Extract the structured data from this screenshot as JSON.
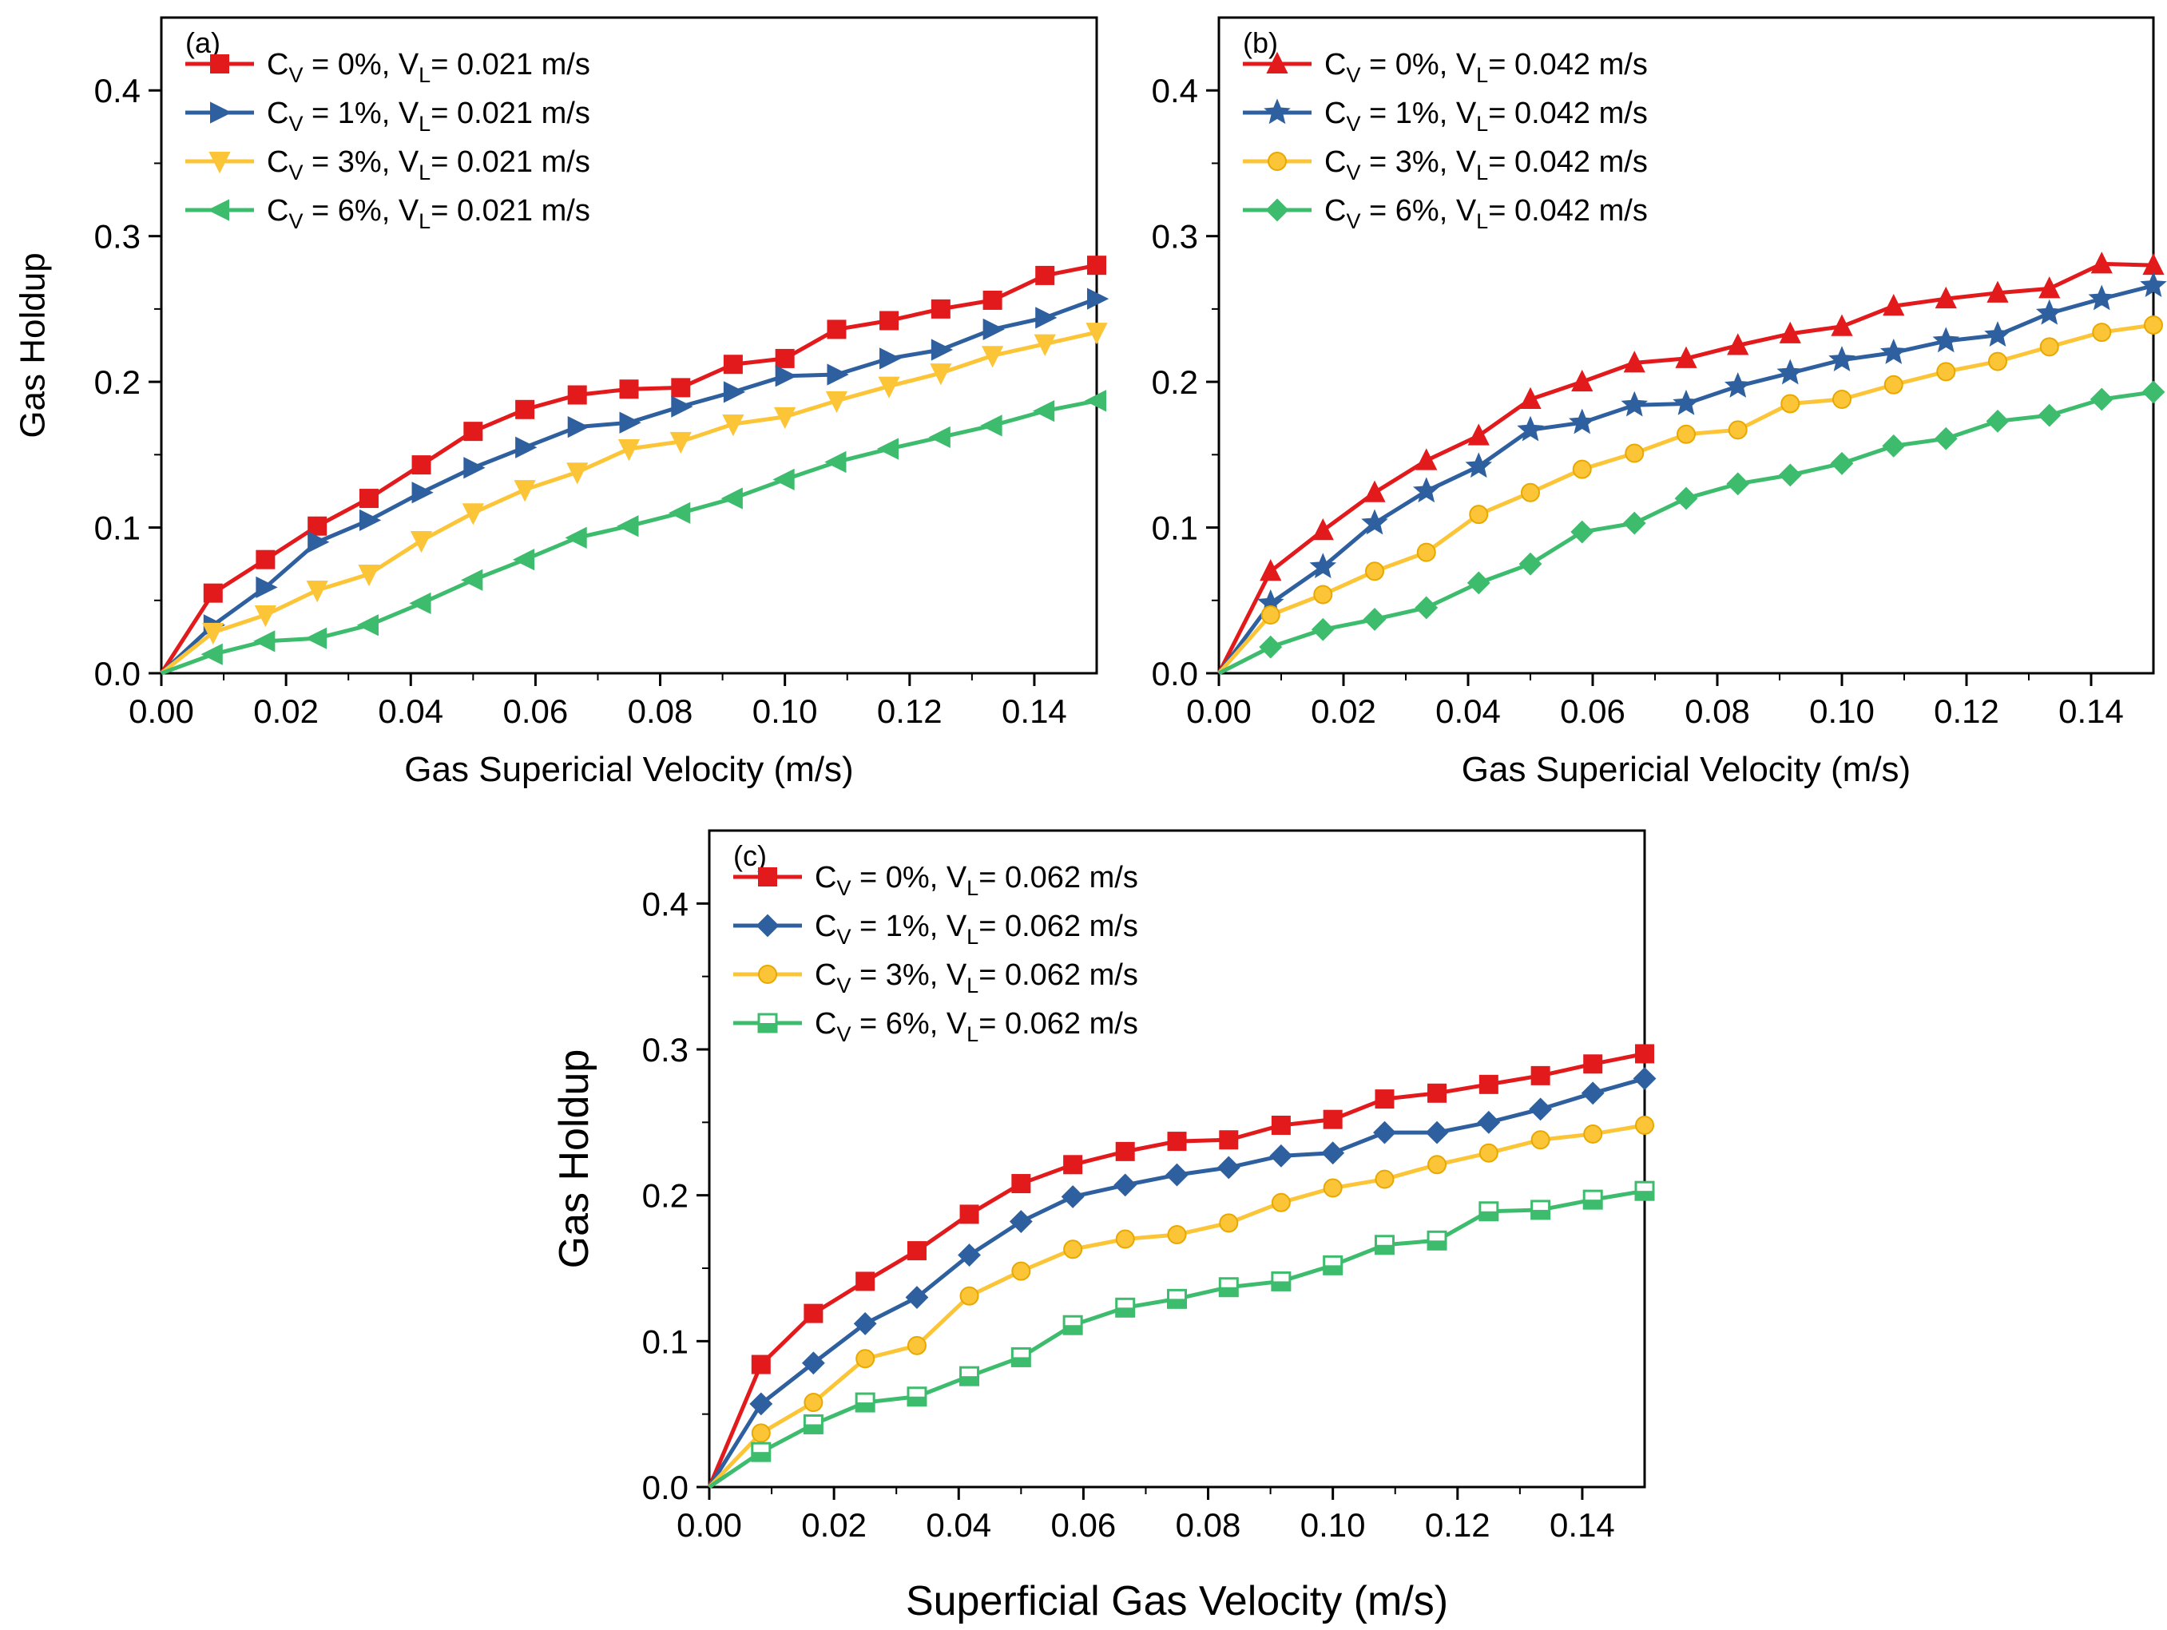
{
  "colors": {
    "series1": "#e31a1c",
    "series2": "#2e5f9e",
    "series3": "#fcc538",
    "series4": "#3cbc6c"
  },
  "chart_data": [
    {
      "type": "line",
      "panel_label": "(a)",
      "xlabel": "Gas Supericial Velocity (m/s)",
      "ylabel": "Gas Holdup",
      "xlim": [
        0,
        0.15
      ],
      "ylim": [
        0,
        0.45
      ],
      "xticks": [
        "0.00",
        "0.02",
        "0.04",
        "0.06",
        "0.08",
        "0.10",
        "0.12",
        "0.14"
      ],
      "yticks": [
        "0.0",
        "0.1",
        "0.2",
        "0.3",
        "0.4"
      ],
      "grid": false,
      "legend_position": "top-left",
      "x": [
        0,
        0.0083,
        0.0167,
        0.025,
        0.0333,
        0.0417,
        0.05,
        0.0583,
        0.0667,
        0.075,
        0.0833,
        0.0917,
        0.1,
        0.1083,
        0.1167,
        0.125,
        0.1333,
        0.1417,
        0.15
      ],
      "series": [
        {
          "legend": {
            "pre": "C",
            "sub": "V",
            "mid": " = 0%, V",
            "sub2": "L",
            "post": "= 0.021 m/s"
          },
          "marker": "square",
          "values": [
            0.0,
            0.055,
            0.078,
            0.101,
            0.12,
            0.143,
            0.166,
            0.181,
            0.191,
            0.195,
            0.196,
            0.212,
            0.216,
            0.236,
            0.242,
            0.25,
            0.256,
            0.273,
            0.28
          ]
        },
        {
          "legend": {
            "pre": "C",
            "sub": "V",
            "mid": " = 1%, V",
            "sub2": "L",
            "post": "= 0.021 m/s"
          },
          "marker": "triangle-right",
          "values": [
            0.0,
            0.033,
            0.059,
            0.09,
            0.105,
            0.124,
            0.141,
            0.155,
            0.169,
            0.172,
            0.183,
            0.193,
            0.204,
            0.205,
            0.216,
            0.222,
            0.236,
            0.244,
            0.257
          ]
        },
        {
          "legend": {
            "pre": "C",
            "sub": "V",
            "mid": " = 3%, V",
            "sub2": "L",
            "post": "= 0.021 m/s"
          },
          "marker": "triangle-down",
          "values": [
            0.0,
            0.028,
            0.04,
            0.057,
            0.068,
            0.091,
            0.11,
            0.126,
            0.138,
            0.154,
            0.159,
            0.171,
            0.176,
            0.187,
            0.197,
            0.206,
            0.218,
            0.226,
            0.234
          ]
        },
        {
          "legend": {
            "pre": "C",
            "sub": "V",
            "mid": " = 6%, V",
            "sub2": "L",
            "post": "= 0.021 m/s"
          },
          "marker": "triangle-left",
          "values": [
            0.0,
            0.013,
            0.022,
            0.024,
            0.033,
            0.048,
            0.064,
            0.078,
            0.093,
            0.101,
            0.11,
            0.12,
            0.133,
            0.145,
            0.154,
            0.162,
            0.17,
            0.18,
            0.187
          ]
        }
      ]
    },
    {
      "type": "line",
      "panel_label": "(b)",
      "xlabel": "Gas Supericial Velocity (m/s)",
      "ylabel": "",
      "xlim": [
        0,
        0.15
      ],
      "ylim": [
        0,
        0.45
      ],
      "xticks": [
        "0.00",
        "0.02",
        "0.04",
        "0.06",
        "0.08",
        "0.10",
        "0.12",
        "0.14"
      ],
      "yticks": [
        "0.0",
        "0.1",
        "0.2",
        "0.3",
        "0.4"
      ],
      "grid": false,
      "legend_position": "top-left",
      "x": [
        0,
        0.0083,
        0.0167,
        0.025,
        0.0333,
        0.0417,
        0.05,
        0.0583,
        0.0667,
        0.075,
        0.0833,
        0.0917,
        0.1,
        0.1083,
        0.1167,
        0.125,
        0.1333,
        0.1417,
        0.15
      ],
      "series": [
        {
          "legend": {
            "pre": "C",
            "sub": "V",
            "mid": " = 0%, V",
            "sub2": "L",
            "post": "= 0.042 m/s"
          },
          "marker": "triangle-up",
          "values": [
            0.0,
            0.07,
            0.098,
            0.124,
            0.146,
            0.163,
            0.188,
            0.2,
            0.213,
            0.216,
            0.225,
            0.233,
            0.238,
            0.252,
            0.257,
            0.261,
            0.264,
            0.281,
            0.28
          ]
        },
        {
          "legend": {
            "pre": "C",
            "sub": "V",
            "mid": " = 1%, V",
            "sub2": "L",
            "post": "= 0.042 m/s"
          },
          "marker": "star",
          "values": [
            0.0,
            0.048,
            0.073,
            0.103,
            0.125,
            0.142,
            0.167,
            0.172,
            0.184,
            0.185,
            0.197,
            0.206,
            0.215,
            0.22,
            0.228,
            0.232,
            0.247,
            0.257,
            0.266
          ]
        },
        {
          "legend": {
            "pre": "C",
            "sub": "V",
            "mid": " = 3%, V",
            "sub2": "L",
            "post": "= 0.042 m/s"
          },
          "marker": "circle",
          "values": [
            0.0,
            0.04,
            0.054,
            0.07,
            0.083,
            0.109,
            0.124,
            0.14,
            0.151,
            0.164,
            0.167,
            0.185,
            0.188,
            0.198,
            0.207,
            0.214,
            0.224,
            0.234,
            0.239
          ]
        },
        {
          "legend": {
            "pre": "C",
            "sub": "V",
            "mid": " = 6%, V",
            "sub2": "L",
            "post": "= 0.042 m/s"
          },
          "marker": "diamond",
          "values": [
            0.0,
            0.018,
            0.03,
            0.037,
            0.045,
            0.062,
            0.075,
            0.097,
            0.103,
            0.12,
            0.13,
            0.136,
            0.144,
            0.156,
            0.161,
            0.173,
            0.177,
            0.188,
            0.193
          ]
        }
      ]
    },
    {
      "type": "line",
      "panel_label": "(c)",
      "xlabel": "Superficial Gas Velocity (m/s)",
      "ylabel": "Gas Holdup",
      "xlim": [
        0,
        0.15
      ],
      "ylim": [
        0,
        0.45
      ],
      "xticks": [
        "0.00",
        "0.02",
        "0.04",
        "0.06",
        "0.08",
        "0.10",
        "0.12",
        "0.14"
      ],
      "yticks": [
        "0.0",
        "0.1",
        "0.2",
        "0.3",
        "0.4"
      ],
      "grid": false,
      "legend_position": "top-left",
      "x": [
        0,
        0.0083,
        0.0167,
        0.025,
        0.0333,
        0.0417,
        0.05,
        0.0583,
        0.0667,
        0.075,
        0.0833,
        0.0917,
        0.1,
        0.1083,
        0.1167,
        0.125,
        0.1333,
        0.1417,
        0.15
      ],
      "series": [
        {
          "legend": {
            "pre": "C",
            "sub": "V",
            "mid": " = 0%, V",
            "sub2": "L",
            "post": "= 0.062 m/s"
          },
          "marker": "square",
          "values": [
            0.0,
            0.084,
            0.119,
            0.141,
            0.162,
            0.187,
            0.208,
            0.221,
            0.23,
            0.237,
            0.238,
            0.248,
            0.252,
            0.266,
            0.27,
            0.276,
            0.282,
            0.29,
            0.297
          ]
        },
        {
          "legend": {
            "pre": "C",
            "sub": "V",
            "mid": " = 1%, V",
            "sub2": "L",
            "post": "= 0.062 m/s"
          },
          "marker": "diamond",
          "values": [
            0.0,
            0.057,
            0.085,
            0.112,
            0.13,
            0.159,
            0.182,
            0.199,
            0.207,
            0.214,
            0.219,
            0.227,
            0.229,
            0.243,
            0.243,
            0.25,
            0.259,
            0.27,
            0.28
          ]
        },
        {
          "legend": {
            "pre": "C",
            "sub": "V",
            "mid": " = 3%, V",
            "sub2": "L",
            "post": "= 0.062 m/s"
          },
          "marker": "circle",
          "values": [
            0.0,
            0.037,
            0.058,
            0.088,
            0.097,
            0.131,
            0.148,
            0.163,
            0.17,
            0.173,
            0.181,
            0.195,
            0.205,
            0.211,
            0.221,
            0.229,
            0.238,
            0.242,
            0.248
          ]
        },
        {
          "legend": {
            "pre": "C",
            "sub": "V",
            "mid": " = 6%, V",
            "sub2": "L",
            "post": "= 0.062 m/s"
          },
          "marker": "square-half",
          "values": [
            0.0,
            0.024,
            0.043,
            0.058,
            0.062,
            0.076,
            0.089,
            0.111,
            0.123,
            0.129,
            0.137,
            0.141,
            0.152,
            0.166,
            0.169,
            0.189,
            0.19,
            0.197,
            0.203
          ]
        }
      ]
    }
  ]
}
